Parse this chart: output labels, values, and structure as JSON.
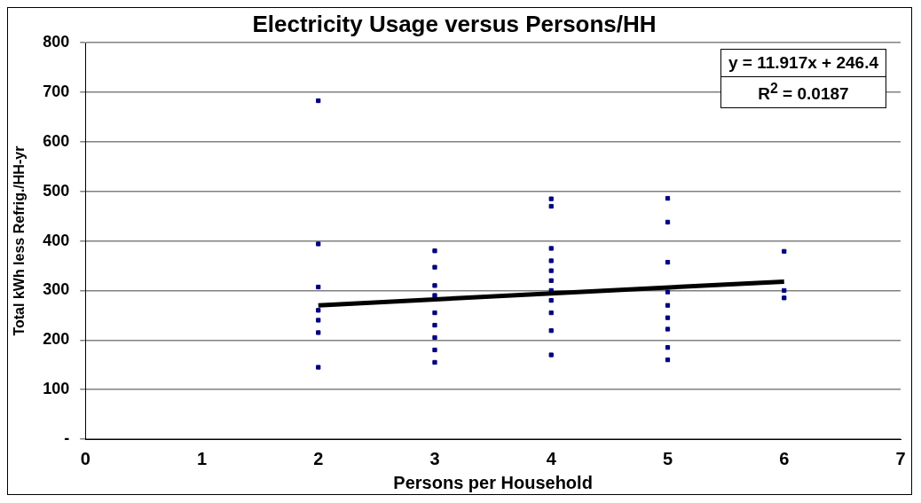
{
  "chart_data": {
    "type": "scatter",
    "title": "Electricity Usage versus Persons/HH",
    "xlabel": "Persons per Household",
    "ylabel": "Total kWh less Refrig./HH-yr",
    "annotations": [
      "y = 11.917x + 246.4",
      "R$^{2}$ = 0.0187"
    ],
    "xlim": [
      0,
      7
    ],
    "xticks": [
      0,
      1,
      2,
      3,
      4,
      5,
      6,
      7
    ],
    "ylim": [
      0,
      800
    ],
    "yticks": [
      {
        "value": 0,
        "label": "-"
      },
      100,
      200,
      300,
      400,
      500,
      600,
      700,
      800
    ],
    "grid": "y",
    "legend": false,
    "series": [
      {
        "type": "scatter",
        "marker": "square",
        "color": "#000080",
        "x": [
          2,
          2,
          2,
          2,
          2,
          2,
          2,
          3,
          3,
          3,
          3,
          3,
          3,
          3,
          3,
          3,
          4,
          4,
          4,
          4,
          4,
          4,
          4,
          4,
          4,
          4,
          4,
          5,
          5,
          5,
          5,
          5,
          5,
          5,
          5,
          5,
          6,
          6,
          6
        ],
        "values": [
          683,
          394,
          307,
          260,
          240,
          215,
          145,
          380,
          347,
          310,
          290,
          255,
          230,
          205,
          180,
          155,
          485,
          470,
          385,
          360,
          340,
          320,
          300,
          280,
          255,
          219,
          170,
          486,
          438,
          357,
          297,
          270,
          245,
          222,
          185,
          160,
          379,
          300,
          285
        ]
      },
      {
        "type": "line",
        "marker": "none",
        "color": "#000000",
        "x": [
          2,
          6
        ],
        "values": [
          270,
          318
        ]
      }
    ]
  }
}
